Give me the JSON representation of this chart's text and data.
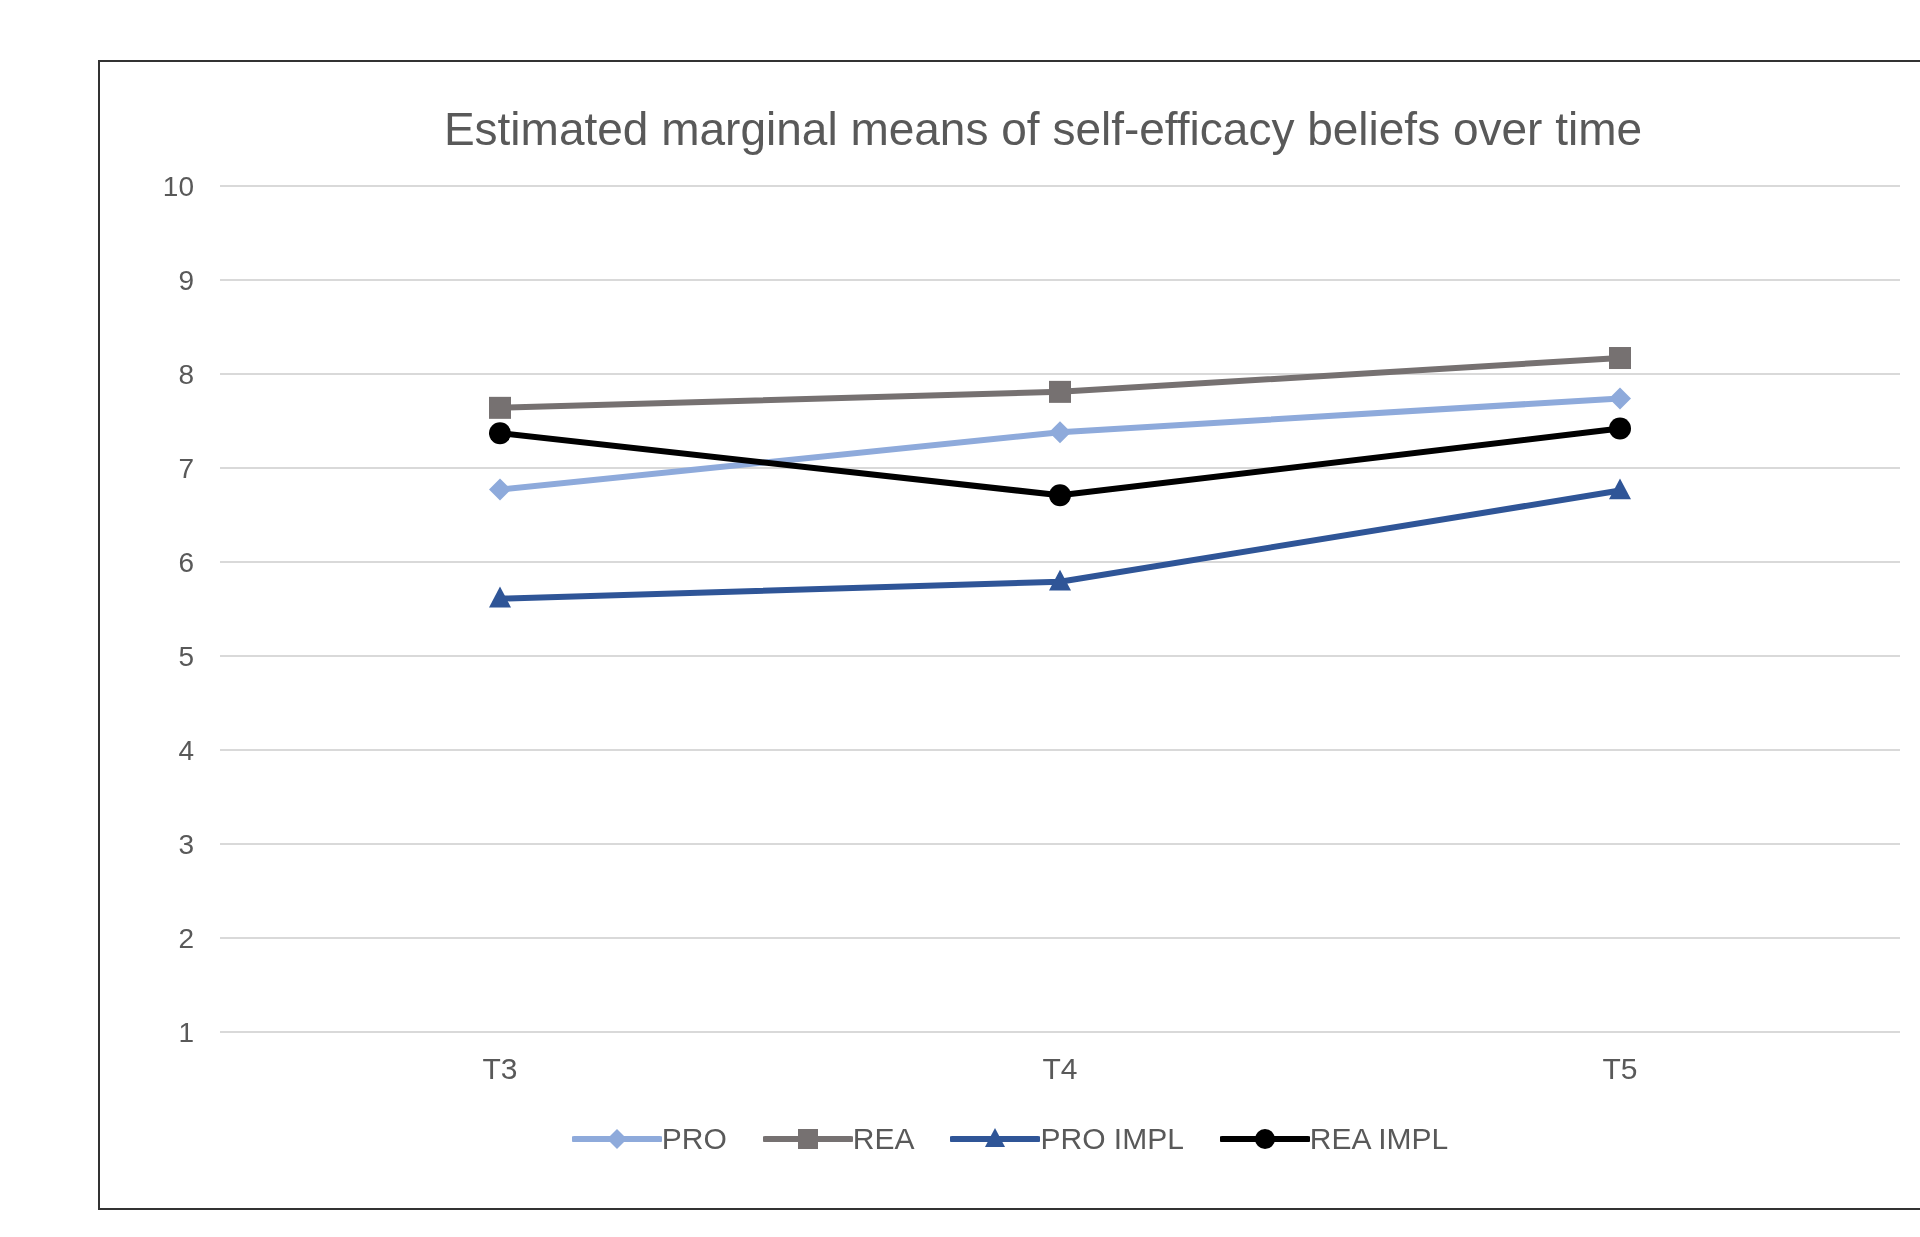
{
  "chart_data": {
    "type": "line",
    "title": "Estimated marginal means of self-efficacy beliefs over time",
    "categories": [
      "T3",
      "T4",
      "T5"
    ],
    "series": [
      {
        "name": "PRO",
        "color": "#8eaadb",
        "marker": "diamond",
        "values": [
          6.77,
          7.38,
          7.74
        ]
      },
      {
        "name": "REA",
        "color": "#767171",
        "marker": "square",
        "values": [
          7.64,
          7.81,
          8.17
        ]
      },
      {
        "name": "PRO IMPL",
        "color": "#2f5597",
        "marker": "triangle",
        "values": [
          5.61,
          5.79,
          6.76
        ]
      },
      {
        "name": "REA IMPL",
        "color": "#000000",
        "marker": "circle",
        "values": [
          7.37,
          6.71,
          7.42
        ]
      }
    ],
    "ylim": [
      1,
      10
    ],
    "yticks": [
      1,
      2,
      3,
      4,
      5,
      6,
      7,
      8,
      9,
      10
    ],
    "grid": "y",
    "legend": "bottom"
  }
}
